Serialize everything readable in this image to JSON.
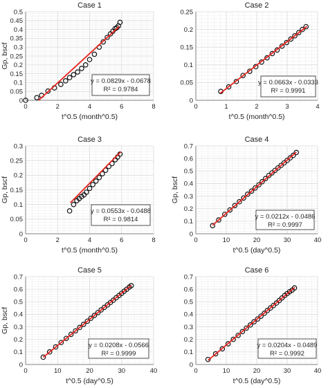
{
  "chart_data": [
    {
      "type": "scatter",
      "title": "Case 1",
      "xlabel": "t^0.5 (month^0.5)",
      "ylabel": "Gp, bscf",
      "xlim": [
        0,
        8
      ],
      "ylim": [
        0,
        0.5
      ],
      "xticks": [
        0,
        2,
        4,
        6,
        8
      ],
      "yticks": [
        0,
        0.05,
        0.1,
        0.15,
        0.2,
        0.25,
        0.3,
        0.35,
        0.4,
        0.45,
        0.5
      ],
      "ytick_labels": [
        "0",
        "0.05",
        "0.1",
        "0.15",
        "0.2",
        "0.25",
        "0.3",
        "0.35",
        "0.4",
        "0.45",
        "0.5"
      ],
      "points": {
        "x": [
          0,
          0.7,
          1.0,
          1.4,
          1.8,
          2.2,
          2.5,
          2.75,
          3.0,
          3.25,
          3.5,
          3.75,
          4.0,
          4.3,
          4.6,
          4.85,
          5.1,
          5.3,
          5.45,
          5.6,
          5.7,
          5.8,
          5.9
        ],
        "y": [
          0,
          0.015,
          0.028,
          0.052,
          0.07,
          0.09,
          0.11,
          0.128,
          0.145,
          0.16,
          0.18,
          0.2,
          0.23,
          0.26,
          0.3,
          0.33,
          0.355,
          0.375,
          0.39,
          0.405,
          0.41,
          0.42,
          0.44
        ]
      },
      "trendline": {
        "slope": 0.0829,
        "intercept": -0.0678,
        "x_range": [
          0.82,
          5.85
        ]
      },
      "equation": "y = 0.0829x - 0.0678",
      "r2": "R² = 0.9784",
      "grid": true,
      "annotation_position": "bottom-right"
    },
    {
      "type": "scatter",
      "title": "Case 2",
      "xlabel": "t^0.5 (month^0.5)",
      "ylabel": "",
      "xlim": [
        0,
        4
      ],
      "ylim": [
        0,
        0.25
      ],
      "xticks": [
        0,
        1,
        2,
        3,
        4
      ],
      "yticks": [
        0,
        0.05,
        0.1,
        0.15,
        0.2,
        0.25
      ],
      "ytick_labels": [
        "0",
        "0.05",
        "0.1",
        "0.15",
        "0.2",
        "0.25"
      ],
      "points": {
        "x": [
          0.82,
          1.08,
          1.33,
          1.55,
          1.77,
          1.97,
          2.16,
          2.34,
          2.51,
          2.67,
          2.83,
          2.98,
          3.12,
          3.25,
          3.38,
          3.5,
          3.62
        ],
        "y": [
          0.025,
          0.038,
          0.053,
          0.07,
          0.082,
          0.095,
          0.108,
          0.12,
          0.132,
          0.142,
          0.153,
          0.163,
          0.173,
          0.182,
          0.191,
          0.2,
          0.208
        ]
      },
      "trendline": {
        "slope": 0.0663,
        "intercept": -0.0333,
        "x_range": [
          0.8,
          3.65
        ]
      },
      "equation": "y = 0.0663x - 0.0333",
      "r2": "R² = 0.9991",
      "grid": true,
      "annotation_position": "bottom-right"
    },
    {
      "type": "scatter",
      "title": "Case 3",
      "xlabel": "t^0.5 (month^0.5)",
      "ylabel": "Gp, bscf",
      "xlim": [
        0,
        8
      ],
      "ylim": [
        0,
        0.3
      ],
      "xticks": [
        0,
        2,
        4,
        6,
        8
      ],
      "yticks": [
        0,
        0.05,
        0.1,
        0.15,
        0.2,
        0.25,
        0.3
      ],
      "ytick_labels": [
        "0",
        "0.05",
        "0.1",
        "0.15",
        "0.2",
        "0.25",
        "0.3"
      ],
      "points": {
        "x": [
          2.75,
          3.0,
          3.2,
          3.35,
          3.5,
          3.65,
          3.8,
          4.0,
          4.2,
          4.4,
          4.6,
          4.8,
          5.0,
          5.2,
          5.4,
          5.6,
          5.75,
          5.9
        ],
        "y": [
          0.078,
          0.1,
          0.113,
          0.12,
          0.127,
          0.133,
          0.142,
          0.155,
          0.168,
          0.18,
          0.192,
          0.205,
          0.217,
          0.23,
          0.24,
          0.253,
          0.262,
          0.272
        ]
      },
      "trendline": {
        "slope": 0.0553,
        "intercept": -0.0488,
        "x_range": [
          2.8,
          5.95
        ]
      },
      "equation": "y = 0.0553x - 0.0488",
      "r2": "R² = 0.9814",
      "grid": true,
      "annotation_position": "bottom-right"
    },
    {
      "type": "scatter",
      "title": "Case 4",
      "xlabel": "t^0.5 (day^0.5)",
      "ylabel": "Gp, bscf",
      "xlim": [
        0,
        40
      ],
      "ylim": [
        0,
        0.7
      ],
      "xticks": [
        0,
        10,
        20,
        30,
        40
      ],
      "yticks": [
        0,
        0.1,
        0.2,
        0.3,
        0.4,
        0.5,
        0.6,
        0.7
      ],
      "ytick_labels": [
        "0",
        "0.1",
        "0.2",
        "0.3",
        "0.4",
        "0.5",
        "0.6",
        "0.7"
      ],
      "points": {
        "x": [
          5.5,
          7.5,
          9.5,
          11.2,
          12.8,
          14.3,
          15.7,
          17.0,
          18.3,
          19.5,
          20.7,
          21.8,
          22.9,
          24.0,
          25.0,
          26.0,
          27.0,
          28.0,
          29.0,
          30.0,
          31.0,
          32.0,
          33.0
        ],
        "y": [
          0.065,
          0.11,
          0.155,
          0.19,
          0.225,
          0.255,
          0.285,
          0.315,
          0.34,
          0.365,
          0.39,
          0.415,
          0.44,
          0.465,
          0.485,
          0.505,
          0.525,
          0.545,
          0.565,
          0.585,
          0.605,
          0.625,
          0.648
        ]
      },
      "trendline": {
        "slope": 0.0212,
        "intercept": -0.0486,
        "x_range": [
          5.5,
          33.0
        ]
      },
      "equation": "y = 0.0212x - 0.0486",
      "r2": "R² = 0.9997",
      "grid": true,
      "annotation_position": "bottom-right"
    },
    {
      "type": "scatter",
      "title": "Case 5",
      "xlabel": "t^0.5 (day^0.5)",
      "ylabel": "Gp, bscf",
      "xlim": [
        0,
        40
      ],
      "ylim": [
        0,
        0.7
      ],
      "xticks": [
        0,
        10,
        20,
        30,
        40
      ],
      "yticks": [
        0,
        0.1,
        0.2,
        0.3,
        0.4,
        0.5,
        0.6,
        0.7
      ],
      "ytick_labels": [
        "0",
        "0.1",
        "0.2",
        "0.3",
        "0.4",
        "0.5",
        "0.6",
        "0.7"
      ],
      "points": {
        "x": [
          5.5,
          7.5,
          9.4,
          11.1,
          12.7,
          14.2,
          15.6,
          16.9,
          18.1,
          19.3,
          20.4,
          21.5,
          22.6,
          23.6,
          24.6,
          25.6,
          26.5,
          27.4,
          28.3,
          29.2,
          30.0,
          30.8,
          31.6,
          32.4,
          33.0
        ],
        "y": [
          0.058,
          0.1,
          0.14,
          0.175,
          0.208,
          0.24,
          0.268,
          0.295,
          0.32,
          0.345,
          0.368,
          0.391,
          0.414,
          0.435,
          0.455,
          0.475,
          0.494,
          0.512,
          0.532,
          0.55,
          0.567,
          0.584,
          0.6,
          0.617,
          0.628
        ]
      },
      "trendline": {
        "slope": 0.0208,
        "intercept": -0.0566,
        "x_range": [
          5.5,
          33.0
        ]
      },
      "equation": "y = 0.0208x - 0.0566",
      "r2": "R² = 0.9999",
      "grid": true,
      "annotation_position": "bottom-right"
    },
    {
      "type": "scatter",
      "title": "Case 6",
      "xlabel": "t^0.5 (day^0.5)",
      "ylabel": "",
      "xlim": [
        0,
        40
      ],
      "ylim": [
        0,
        0.7
      ],
      "xticks": [
        0,
        10,
        20,
        30,
        40
      ],
      "yticks": [
        0,
        0.1,
        0.2,
        0.3,
        0.4,
        0.5,
        0.6,
        0.7
      ],
      "ytick_labels": [
        "0",
        "0.1",
        "0.2",
        "0.3",
        "0.4",
        "0.5",
        "0.6",
        "0.7"
      ],
      "points": {
        "x": [
          4.0,
          6.5,
          8.7,
          10.6,
          12.3,
          13.9,
          15.3,
          16.6,
          17.9,
          19.1,
          20.3,
          21.4,
          22.5,
          23.5,
          24.5,
          25.5,
          26.5,
          27.4,
          28.3,
          29.2,
          30.0,
          30.8,
          31.6,
          32.4
        ],
        "y": [
          0.04,
          0.085,
          0.125,
          0.165,
          0.2,
          0.232,
          0.262,
          0.29,
          0.315,
          0.34,
          0.363,
          0.385,
          0.408,
          0.43,
          0.45,
          0.47,
          0.49,
          0.51,
          0.53,
          0.55,
          0.565,
          0.58,
          0.592,
          0.61
        ]
      },
      "trendline": {
        "slope": 0.0204,
        "intercept": -0.0489,
        "x_range": [
          4.0,
          32.5
        ]
      },
      "equation": "y = 0.0204x - 0.0489",
      "r2": "R² = 0.9992",
      "grid": true,
      "annotation_position": "bottom-right"
    }
  ],
  "colors": {
    "marker_stroke": "#111111",
    "trendline": "#e8231e",
    "grid": "#d9d9d9",
    "axis": "#7f7f7f"
  }
}
